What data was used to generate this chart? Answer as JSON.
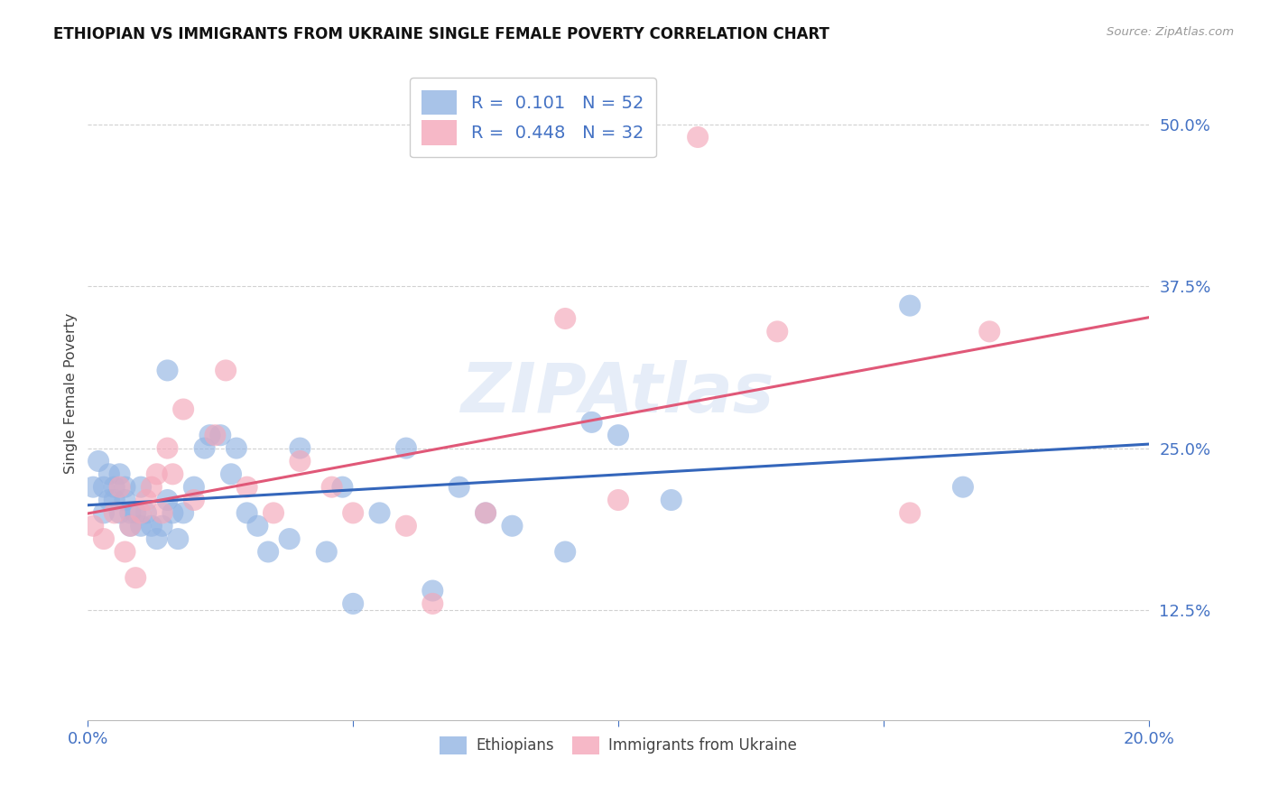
{
  "title": "ETHIOPIAN VS IMMIGRANTS FROM UKRAINE SINGLE FEMALE POVERTY CORRELATION CHART",
  "source": "Source: ZipAtlas.com",
  "ylabel": "Single Female Poverty",
  "xlim": [
    0.0,
    0.2
  ],
  "ylim": [
    0.04,
    0.545
  ],
  "yticks": [
    0.125,
    0.25,
    0.375,
    0.5
  ],
  "ytick_labels": [
    "12.5%",
    "25.0%",
    "37.5%",
    "50.0%"
  ],
  "xticks": [
    0.0,
    0.05,
    0.1,
    0.15,
    0.2
  ],
  "ethiopians_color": "#92b4e3",
  "ukraine_color": "#f4a7b9",
  "line_ethiopians_color": "#3466bb",
  "line_ukraine_color": "#e05878",
  "watermark": "ZIPAtlas",
  "ethiopians_x": [
    0.001,
    0.002,
    0.003,
    0.003,
    0.004,
    0.004,
    0.005,
    0.005,
    0.006,
    0.006,
    0.007,
    0.007,
    0.008,
    0.008,
    0.009,
    0.01,
    0.01,
    0.011,
    0.012,
    0.013,
    0.014,
    0.015,
    0.015,
    0.016,
    0.017,
    0.018,
    0.02,
    0.022,
    0.023,
    0.025,
    0.027,
    0.028,
    0.03,
    0.032,
    0.034,
    0.038,
    0.04,
    0.045,
    0.048,
    0.05,
    0.055,
    0.06,
    0.065,
    0.07,
    0.075,
    0.08,
    0.09,
    0.095,
    0.1,
    0.11,
    0.155,
    0.165
  ],
  "ethiopians_y": [
    0.22,
    0.24,
    0.22,
    0.2,
    0.21,
    0.23,
    0.21,
    0.22,
    0.2,
    0.23,
    0.21,
    0.22,
    0.19,
    0.2,
    0.2,
    0.19,
    0.22,
    0.2,
    0.19,
    0.18,
    0.19,
    0.21,
    0.31,
    0.2,
    0.18,
    0.2,
    0.22,
    0.25,
    0.26,
    0.26,
    0.23,
    0.25,
    0.2,
    0.19,
    0.17,
    0.18,
    0.25,
    0.17,
    0.22,
    0.13,
    0.2,
    0.25,
    0.14,
    0.22,
    0.2,
    0.19,
    0.17,
    0.27,
    0.26,
    0.21,
    0.36,
    0.22
  ],
  "ukraine_x": [
    0.001,
    0.003,
    0.005,
    0.006,
    0.007,
    0.008,
    0.009,
    0.01,
    0.011,
    0.012,
    0.013,
    0.014,
    0.015,
    0.016,
    0.018,
    0.02,
    0.024,
    0.026,
    0.03,
    0.035,
    0.04,
    0.046,
    0.05,
    0.06,
    0.065,
    0.075,
    0.09,
    0.1,
    0.115,
    0.13,
    0.155,
    0.17
  ],
  "ukraine_y": [
    0.19,
    0.18,
    0.2,
    0.22,
    0.17,
    0.19,
    0.15,
    0.2,
    0.21,
    0.22,
    0.23,
    0.2,
    0.25,
    0.23,
    0.28,
    0.21,
    0.26,
    0.31,
    0.22,
    0.2,
    0.24,
    0.22,
    0.2,
    0.19,
    0.13,
    0.2,
    0.35,
    0.21,
    0.49,
    0.34,
    0.2,
    0.34
  ]
}
